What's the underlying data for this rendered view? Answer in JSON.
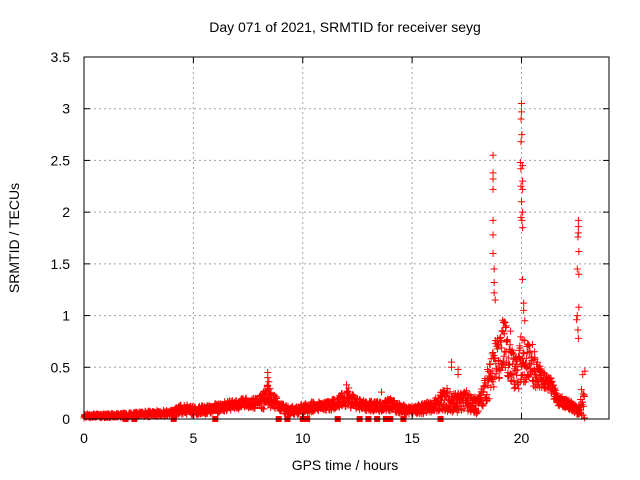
{
  "chart_data": {
    "type": "scatter",
    "title": "Day 071 of 2021, SRMTID for receiver seyg",
    "xlabel": "GPS time / hours",
    "ylabel": "SRMTID / TECUs",
    "xlim": [
      0,
      24
    ],
    "ylim": [
      0,
      3.5
    ],
    "xticks": [
      0,
      5,
      10,
      15,
      20
    ],
    "xtick_labels": [
      "0",
      "5",
      "10",
      "15",
      "20"
    ],
    "yticks": [
      0,
      0.5,
      1,
      1.5,
      2,
      2.5,
      3,
      3.5
    ],
    "ytick_labels": [
      "0",
      "0.5",
      "1",
      "1.5",
      "2",
      "2.5",
      "3",
      "3.5"
    ],
    "grid": true,
    "marker": "plus",
    "marker_color": "#ff0000",
    "series": [
      {
        "name": "SRMTID",
        "baseline_envelope": {
          "x": [
            0,
            1,
            2,
            3,
            4,
            4.5,
            5,
            6,
            7,
            7.5,
            8,
            8.4,
            8.8,
            9,
            9.5,
            10,
            10.5,
            11,
            11.5,
            12,
            12.5,
            13,
            13.5,
            14,
            14.5,
            15,
            15.5,
            16,
            16.5,
            17,
            17.5,
            18,
            18.3,
            18.6,
            18.9,
            19.2,
            19.5,
            19.8,
            20,
            20.3,
            20.6,
            21,
            21.3,
            21.6,
            22,
            22.3,
            22.6,
            22.9
          ],
          "median": [
            0.03,
            0.03,
            0.04,
            0.05,
            0.06,
            0.1,
            0.08,
            0.1,
            0.14,
            0.16,
            0.15,
            0.22,
            0.15,
            0.1,
            0.08,
            0.1,
            0.12,
            0.13,
            0.15,
            0.2,
            0.15,
            0.13,
            0.12,
            0.14,
            0.1,
            0.08,
            0.1,
            0.12,
            0.2,
            0.15,
            0.18,
            0.12,
            0.25,
            0.4,
            0.6,
            0.75,
            0.5,
            0.45,
            0.6,
            0.55,
            0.45,
            0.38,
            0.35,
            0.2,
            0.15,
            0.12,
            0.08,
            0.3
          ],
          "spread": [
            0.02,
            0.02,
            0.02,
            0.03,
            0.03,
            0.05,
            0.04,
            0.05,
            0.05,
            0.05,
            0.06,
            0.12,
            0.06,
            0.05,
            0.04,
            0.05,
            0.05,
            0.05,
            0.06,
            0.08,
            0.06,
            0.05,
            0.05,
            0.06,
            0.05,
            0.04,
            0.05,
            0.06,
            0.12,
            0.1,
            0.1,
            0.08,
            0.12,
            0.2,
            0.25,
            0.25,
            0.2,
            0.2,
            0.25,
            0.2,
            0.15,
            0.08,
            0.08,
            0.06,
            0.05,
            0.05,
            0.04,
            0.3
          ]
        },
        "gap_markers_x": [
          1.9,
          2.3,
          4.1,
          6.0,
          8.9,
          9.3,
          10.0,
          10.2,
          11.6,
          12.6,
          13.0,
          13.4,
          13.8,
          14.0,
          14.6,
          16.3
        ],
        "gap_markers_y": 0.0,
        "spikes": [
          {
            "x": 18.7,
            "y": 2.55
          },
          {
            "x": 18.7,
            "y": 2.38
          },
          {
            "x": 18.7,
            "y": 2.32
          },
          {
            "x": 18.7,
            "y": 2.22
          },
          {
            "x": 18.7,
            "y": 1.92
          },
          {
            "x": 18.7,
            "y": 1.78
          },
          {
            "x": 18.7,
            "y": 1.6
          },
          {
            "x": 18.75,
            "y": 1.45
          },
          {
            "x": 18.75,
            "y": 1.32
          },
          {
            "x": 18.75,
            "y": 1.22
          },
          {
            "x": 18.8,
            "y": 1.15
          },
          {
            "x": 20.0,
            "y": 3.05
          },
          {
            "x": 20.0,
            "y": 2.97
          },
          {
            "x": 19.98,
            "y": 2.9
          },
          {
            "x": 20.02,
            "y": 2.75
          },
          {
            "x": 19.98,
            "y": 2.68
          },
          {
            "x": 19.95,
            "y": 2.48
          },
          {
            "x": 20.05,
            "y": 2.45
          },
          {
            "x": 19.97,
            "y": 2.42
          },
          {
            "x": 20.05,
            "y": 2.3
          },
          {
            "x": 19.98,
            "y": 2.25
          },
          {
            "x": 20.05,
            "y": 2.22
          },
          {
            "x": 20.0,
            "y": 2.1
          },
          {
            "x": 20.05,
            "y": 2.0
          },
          {
            "x": 19.98,
            "y": 1.95
          },
          {
            "x": 20.02,
            "y": 1.92
          },
          {
            "x": 20.05,
            "y": 1.85
          },
          {
            "x": 20.05,
            "y": 1.35
          },
          {
            "x": 20.1,
            "y": 1.12
          },
          {
            "x": 20.1,
            "y": 1.05
          },
          {
            "x": 20.15,
            "y": 0.95
          },
          {
            "x": 22.6,
            "y": 1.92
          },
          {
            "x": 22.6,
            "y": 1.86
          },
          {
            "x": 22.6,
            "y": 1.8
          },
          {
            "x": 22.58,
            "y": 1.76
          },
          {
            "x": 22.62,
            "y": 1.62
          },
          {
            "x": 22.55,
            "y": 1.45
          },
          {
            "x": 22.62,
            "y": 1.4
          },
          {
            "x": 22.62,
            "y": 1.08
          },
          {
            "x": 22.55,
            "y": 1.0
          },
          {
            "x": 22.52,
            "y": 0.96
          },
          {
            "x": 22.58,
            "y": 0.86
          },
          {
            "x": 22.6,
            "y": 0.78
          },
          {
            "x": 8.4,
            "y": 0.45
          },
          {
            "x": 8.4,
            "y": 0.4
          },
          {
            "x": 8.45,
            "y": 0.36
          },
          {
            "x": 8.4,
            "y": 0.32
          },
          {
            "x": 12.0,
            "y": 0.33
          },
          {
            "x": 12.1,
            "y": 0.3
          },
          {
            "x": 13.6,
            "y": 0.26
          },
          {
            "x": 16.8,
            "y": 0.55
          },
          {
            "x": 16.8,
            "y": 0.5
          },
          {
            "x": 17.1,
            "y": 0.48
          },
          {
            "x": 17.1,
            "y": 0.43
          },
          {
            "x": 19.3,
            "y": 0.9
          },
          {
            "x": 19.5,
            "y": 0.85
          },
          {
            "x": 20.5,
            "y": 0.72
          },
          {
            "x": 20.6,
            "y": 0.65
          }
        ]
      }
    ]
  }
}
